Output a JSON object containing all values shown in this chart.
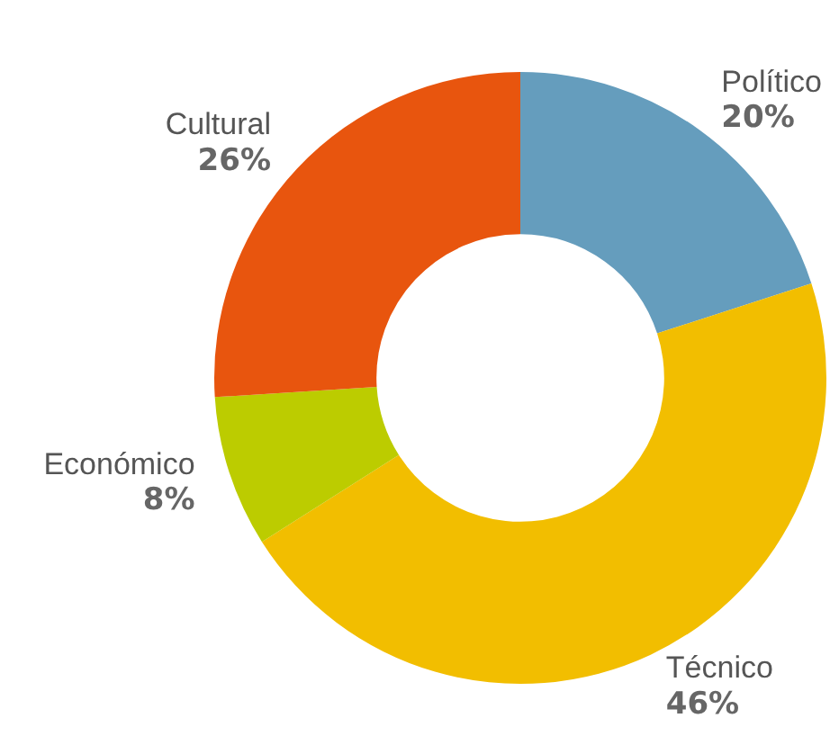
{
  "chart_data": {
    "type": "donut",
    "categories": [
      "Político",
      "Técnico",
      "Económico",
      "Cultural"
    ],
    "values": [
      20,
      46,
      8,
      26
    ],
    "colors": [
      "#659dbd",
      "#f2be00",
      "#bccc00",
      "#e8550e"
    ],
    "value_labels": [
      "20%",
      "46%",
      "8%",
      "26%"
    ],
    "legend": false
  }
}
